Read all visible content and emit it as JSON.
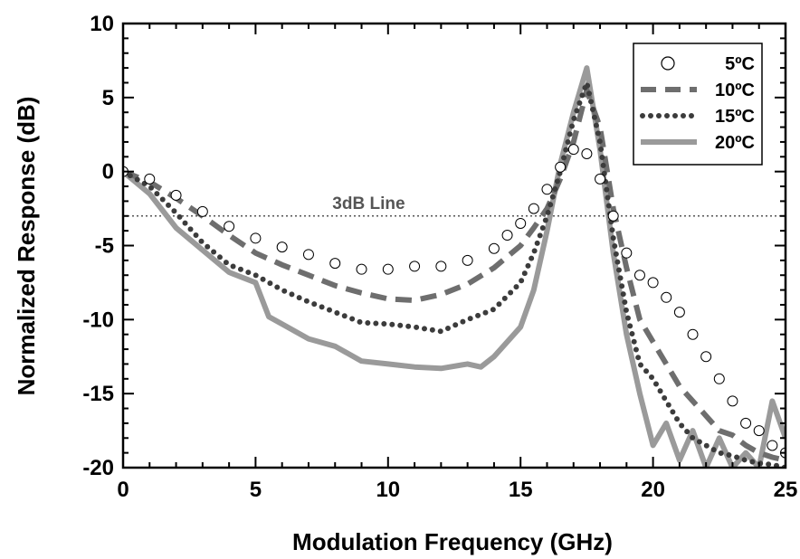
{
  "chart_data": {
    "type": "line",
    "title": "",
    "xlabel": "Modulation Frequency (GHz)",
    "ylabel": "Normalized Response (dB)",
    "xlim": [
      0,
      25
    ],
    "ylim": [
      -20,
      10
    ],
    "xticks": [
      0,
      5,
      10,
      15,
      20,
      25
    ],
    "yticks": [
      10,
      5,
      0,
      -5,
      -10,
      -15,
      -20
    ],
    "grid": false,
    "legend_position": "top-right",
    "reference_line": {
      "label": "3dB Line",
      "y": -3
    },
    "colors": {
      "5C": "#000000",
      "10C": "#6e6e6e",
      "15C": "#3c3c3c",
      "20C": "#9a9a9a",
      "ref": "#555555"
    },
    "series": [
      {
        "name": "5ºC",
        "style": "open-circles",
        "x": [
          0,
          1,
          2,
          3,
          4,
          5,
          6,
          7,
          8,
          9,
          10,
          11,
          12,
          13,
          14,
          14.5,
          15,
          15.5,
          16,
          16.5,
          17,
          17.5,
          18,
          18.5,
          19,
          19.5,
          20,
          20.5,
          21,
          21.5,
          22,
          22.5,
          23,
          23.5,
          24,
          24.5,
          25
        ],
        "y": [
          0,
          -0.5,
          -1.6,
          -2.7,
          -3.7,
          -4.5,
          -5.1,
          -5.6,
          -6.2,
          -6.6,
          -6.6,
          -6.4,
          -6.4,
          -6.0,
          -5.2,
          -4.3,
          -3.5,
          -2.5,
          -1.2,
          0.3,
          1.5,
          1.2,
          -0.5,
          -3.0,
          -5.5,
          -7.0,
          -7.5,
          -8.5,
          -9.5,
          -11,
          -12.5,
          -14,
          -15.5,
          -17,
          -17.5,
          -18.5,
          -19
        ]
      },
      {
        "name": "10ºC",
        "style": "dashed",
        "x": [
          0,
          1,
          2,
          3,
          4,
          5,
          6,
          7,
          8,
          9,
          10,
          11,
          12,
          13,
          14,
          15,
          15.5,
          16,
          16.5,
          17,
          17.5,
          18,
          18.5,
          19,
          19.5,
          20,
          20.5,
          21,
          21.5,
          22,
          22.5,
          23,
          23.5,
          24,
          24.5,
          25
        ],
        "y": [
          0,
          -0.7,
          -1.8,
          -3.0,
          -4.3,
          -5.5,
          -6.3,
          -7.0,
          -7.7,
          -8.2,
          -8.6,
          -8.7,
          -8.3,
          -7.6,
          -6.5,
          -5.0,
          -3.8,
          -2.5,
          -0.5,
          2.0,
          5.5,
          3.0,
          -2.5,
          -6.5,
          -10,
          -11.5,
          -13,
          -14.5,
          -15.5,
          -16.5,
          -17.5,
          -17.8,
          -18.5,
          -19,
          -19.3,
          -19.5
        ]
      },
      {
        "name": "15ºC",
        "style": "dotted",
        "x": [
          0,
          1,
          2,
          3,
          4,
          5,
          6,
          7,
          8,
          9,
          10,
          11,
          12,
          13,
          14,
          15,
          15.5,
          16,
          16.5,
          17,
          17.5,
          18,
          18.5,
          19,
          19.5,
          20,
          20.5,
          21,
          21.5,
          22,
          22.5,
          23,
          23.5,
          24,
          24.5,
          25
        ],
        "y": [
          0,
          -1.0,
          -2.8,
          -4.8,
          -6.3,
          -7.0,
          -8.0,
          -8.8,
          -9.5,
          -10.2,
          -10.3,
          -10.5,
          -10.8,
          -10.0,
          -9.3,
          -7.5,
          -5.5,
          -3.0,
          0,
          3.5,
          6.0,
          2.0,
          -4.5,
          -9.5,
          -13,
          -14,
          -15.5,
          -17,
          -18,
          -18.5,
          -19,
          -19.2,
          -19.5,
          -19.7,
          -19.8,
          -20
        ]
      },
      {
        "name": "20ºC",
        "style": "solid",
        "x": [
          0,
          1,
          2,
          3,
          4,
          5,
          5.5,
          6,
          7,
          8,
          9,
          10,
          11,
          12,
          13,
          13.5,
          14,
          15,
          15.5,
          16,
          16.5,
          17,
          17.5,
          18,
          18.5,
          19,
          19.5,
          20,
          20.5,
          21,
          21.5,
          22,
          22.5,
          23,
          23.5,
          24,
          24.5,
          25
        ],
        "y": [
          0,
          -1.5,
          -3.8,
          -5.3,
          -6.8,
          -7.5,
          -9.8,
          -10.3,
          -11.3,
          -11.8,
          -12.8,
          -13.0,
          -13.2,
          -13.3,
          -13.0,
          -13.2,
          -12.5,
          -10.5,
          -8.0,
          -4.0,
          0.5,
          4.0,
          7.0,
          1.5,
          -5.5,
          -11,
          -15,
          -18.5,
          -17,
          -19.5,
          -17.5,
          -20,
          -18,
          -20,
          -19,
          -20,
          -15.5,
          -18
        ]
      }
    ]
  }
}
